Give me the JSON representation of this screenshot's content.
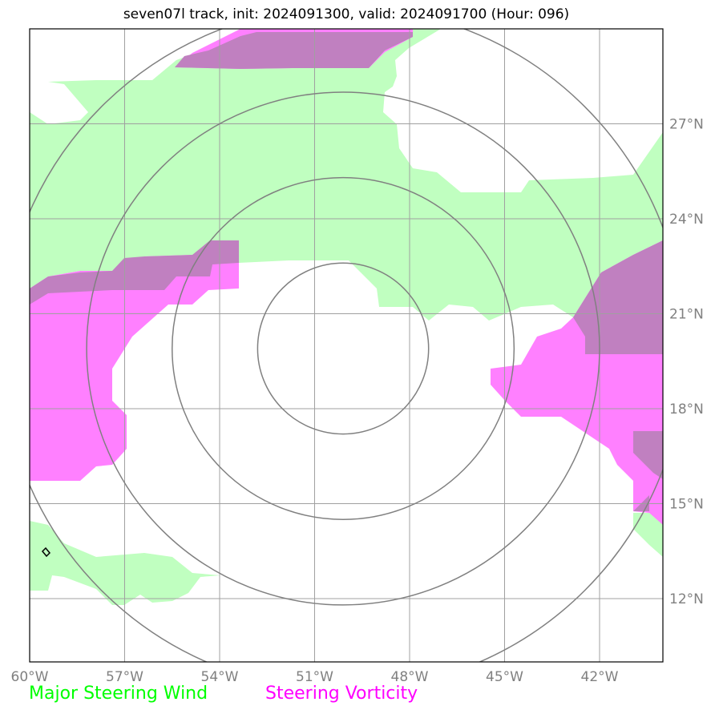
{
  "title": "seven07l track, init: 2024091300, valid: 2024091700 (Hour: 096)",
  "map": {
    "lon_range": [
      -60,
      -40
    ],
    "lat_range": [
      10,
      30
    ],
    "lon_ticks": [
      {
        "value": -60,
        "label": "60°W"
      },
      {
        "value": -57,
        "label": "57°W"
      },
      {
        "value": -54,
        "label": "54°W"
      },
      {
        "value": -51,
        "label": "51°W"
      },
      {
        "value": -48,
        "label": "48°W"
      },
      {
        "value": -45,
        "label": "45°W"
      },
      {
        "value": -42,
        "label": "42°W"
      }
    ],
    "lat_ticks": [
      {
        "value": 27,
        "label": "27°N"
      },
      {
        "value": 24,
        "label": "24°N"
      },
      {
        "value": 21,
        "label": "21°N"
      },
      {
        "value": 18,
        "label": "18°N"
      },
      {
        "value": 15,
        "label": "15°N"
      },
      {
        "value": 12,
        "label": "12°N"
      }
    ],
    "range_rings_center": {
      "lon": -50.1,
      "lat": 19.9
    },
    "range_rings_radius_deg": [
      2.7,
      5.4,
      8.1,
      10.8
    ]
  },
  "legend": {
    "wind_label": "Major Steering Wind",
    "wind_color": "#00ff00",
    "vorticity_label": "Steering Vorticity",
    "vorticity_color": "#ff00ff"
  },
  "colors": {
    "wind_fill": "#c0ffc0",
    "vorticity_fill": "#ff80ff",
    "overlap_fill": "#c080c0",
    "grid": "#a0a0a0",
    "rings": "#808080"
  }
}
